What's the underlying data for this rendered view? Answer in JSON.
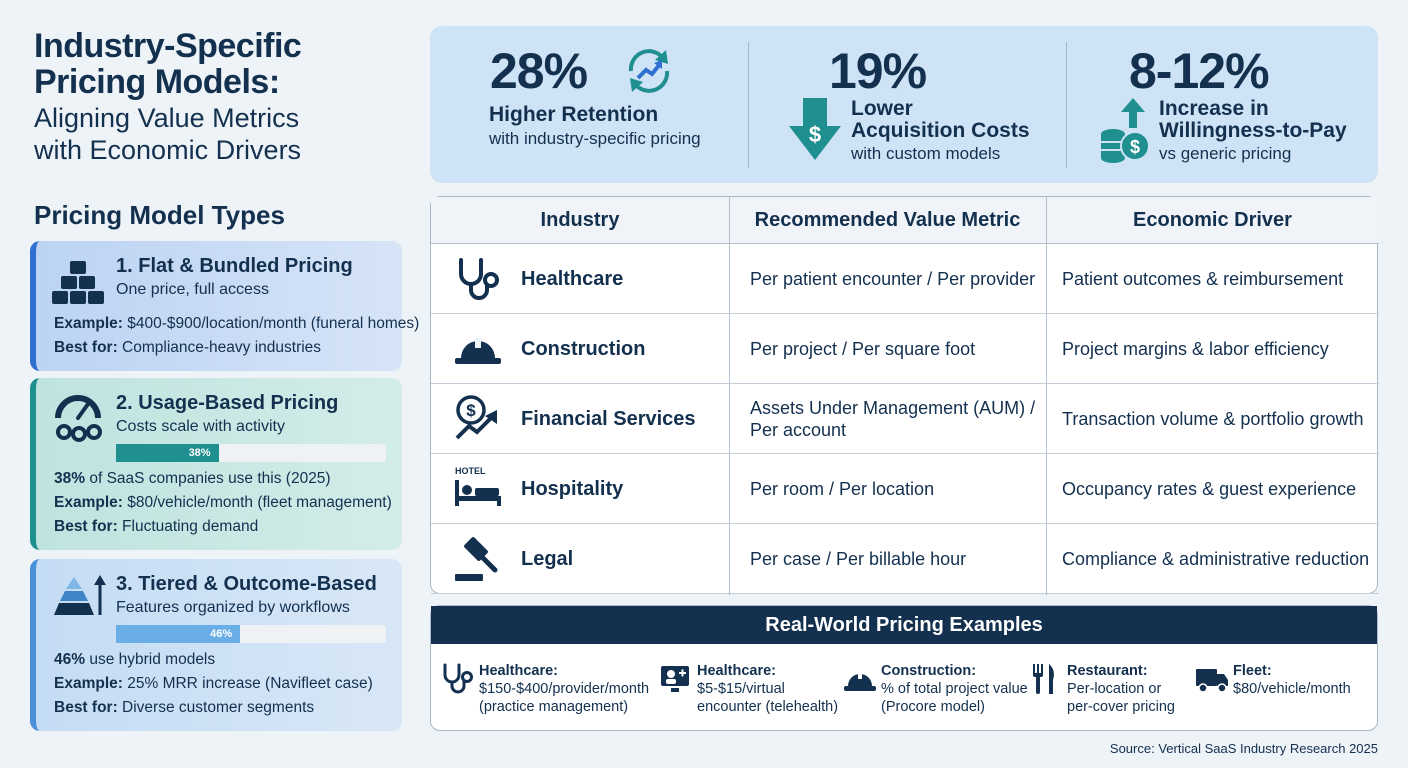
{
  "title": {
    "main_line1": "Industry-Specific",
    "main_line2": "Pricing Models:",
    "sub_line1": "Aligning Value Metrics",
    "sub_line2": "with Economic Drivers"
  },
  "pricing_types": {
    "heading": "Pricing Model Types",
    "cards": [
      {
        "title": "1. Flat & Bundled Pricing",
        "desc": "One price, full access",
        "example_label": "Example:",
        "example": "$400-$900/location/month (funeral homes)",
        "best_label": "Best for:",
        "best": "Compliance-heavy industries",
        "icon": "stacked-blocks-icon"
      },
      {
        "title": "2. Usage-Based Pricing",
        "desc": "Costs scale with activity",
        "bar_value": 38,
        "bar_label": "38%",
        "stat_bold": "38%",
        "stat_text": "of SaaS companies use this (2025)",
        "example_label": "Example:",
        "example": "$80/vehicle/month (fleet management)",
        "best_label": "Best for:",
        "best": "Fluctuating demand",
        "icon": "gauge-gears-icon"
      },
      {
        "title": "3. Tiered & Outcome-Based",
        "desc": "Features organized by workflows",
        "bar_value": 46,
        "bar_label": "46%",
        "stat_bold": "46%",
        "stat_text": "use hybrid models",
        "example_label": "Example:",
        "example": "25% MRR increase (Navifleet case)",
        "best_label": "Best for:",
        "best": "Diverse customer segments",
        "icon": "pyramid-arrow-icon"
      }
    ]
  },
  "stats": [
    {
      "value": "28%",
      "label_line1": "Higher Retention",
      "label_line2": "",
      "note": "with industry-specific pricing",
      "icon": "refresh-growth-icon"
    },
    {
      "value": "19%",
      "label_line1": "Lower",
      "label_line2": "Acquisition Costs",
      "note": "with custom models",
      "icon": "down-arrow-dollar-icon"
    },
    {
      "value": "8-12%",
      "label_line1": "Increase in",
      "label_line2": "Willingness-to-Pay",
      "note": "vs generic pricing",
      "icon": "coins-up-arrow-icon"
    }
  ],
  "industry_table": {
    "headers": [
      "Industry",
      "Recommended Value Metric",
      "Economic Driver"
    ],
    "rows": [
      {
        "industry": "Healthcare",
        "metric": "Per patient encounter / Per provider",
        "driver": "Patient outcomes & reimbursement",
        "icon": "stethoscope-icon"
      },
      {
        "industry": "Construction",
        "metric": "Per project / Per square foot",
        "driver": "Project margins & labor efficiency",
        "icon": "hard-hat-icon"
      },
      {
        "industry": "Financial Services",
        "metric": "Assets Under Management (AUM) / Per account",
        "driver": "Transaction volume & portfolio growth",
        "icon": "dollar-growth-icon"
      },
      {
        "industry": "Hospitality",
        "metric": "Per room / Per location",
        "driver": "Occupancy rates & guest experience",
        "icon": "hotel-bed-icon",
        "icon_text": "HOTEL"
      },
      {
        "industry": "Legal",
        "metric": "Per case / Per billable hour",
        "driver": "Compliance & administrative reduction",
        "icon": "gavel-icon"
      }
    ]
  },
  "examples": {
    "heading": "Real-World Pricing Examples",
    "items": [
      {
        "title": "Healthcare:",
        "line1": "$150-$400/provider/month",
        "line2": "(practice management)",
        "icon": "stethoscope-icon"
      },
      {
        "title": "Healthcare:",
        "line1": "$5-$15/virtual",
        "line2": "encounter (telehealth)",
        "icon": "telehealth-screen-icon"
      },
      {
        "title": "Construction:",
        "line1": "% of total project value",
        "line2": "(Procore model)",
        "icon": "hard-hat-icon"
      },
      {
        "title": "Restaurant:",
        "line1": "Per-location or",
        "line2": "per-cover pricing",
        "icon": "fork-knife-icon"
      },
      {
        "title": "Fleet:",
        "line1": "$80/vehicle/month",
        "line2": "",
        "icon": "truck-icon"
      }
    ]
  },
  "source": "Source: Vertical SaaS Industry Research 2025",
  "colors": {
    "navy": "#13304f",
    "teal": "#1f8f8f",
    "blue": "#2f6fd0",
    "light_blue": "#4a90d9",
    "stats_bg": "#cfe3f6"
  }
}
